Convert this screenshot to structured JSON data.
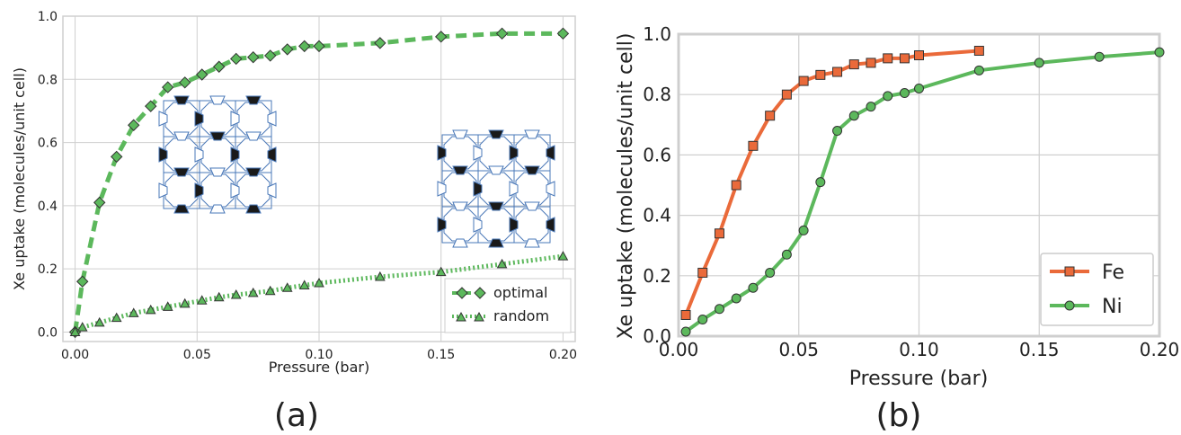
{
  "chart_data": [
    {
      "panel_label": "(a)",
      "type": "line",
      "xlabel": "Pressure (bar)",
      "ylabel": "Xe uptake (molecules/unit cell)",
      "xlim": [
        -0.005,
        0.205
      ],
      "ylim": [
        -0.03,
        1.0
      ],
      "xticks": [
        "0.00",
        "0.05",
        "0.10",
        "0.15",
        "0.20"
      ],
      "yticks": [
        "0.0",
        "0.2",
        "0.4",
        "0.6",
        "0.8",
        "1.0"
      ],
      "grid": true,
      "legend_position": "bottom-right",
      "series": [
        {
          "name": "optimal",
          "color": "#5cb85c",
          "marker": "diamond",
          "line": "dashed",
          "x": [
            0.0,
            0.003,
            0.01,
            0.017,
            0.024,
            0.031,
            0.038,
            0.045,
            0.052,
            0.059,
            0.066,
            0.073,
            0.08,
            0.087,
            0.094,
            0.1,
            0.125,
            0.15,
            0.175,
            0.2
          ],
          "y": [
            0.0,
            0.16,
            0.41,
            0.555,
            0.655,
            0.715,
            0.775,
            0.79,
            0.815,
            0.84,
            0.865,
            0.87,
            0.875,
            0.895,
            0.905,
            0.905,
            0.915,
            0.935,
            0.945,
            0.945
          ]
        },
        {
          "name": "random",
          "color": "#5cb85c",
          "marker": "triangle",
          "line": "dotted",
          "x": [
            0.0,
            0.003,
            0.01,
            0.017,
            0.024,
            0.031,
            0.038,
            0.045,
            0.052,
            0.059,
            0.066,
            0.073,
            0.08,
            0.087,
            0.094,
            0.1,
            0.125,
            0.15,
            0.175,
            0.2
          ],
          "y": [
            0.0,
            0.015,
            0.03,
            0.045,
            0.06,
            0.07,
            0.08,
            0.09,
            0.1,
            0.11,
            0.118,
            0.124,
            0.13,
            0.14,
            0.148,
            0.155,
            0.175,
            0.19,
            0.215,
            0.24
          ]
        }
      ]
    },
    {
      "panel_label": "(b)",
      "type": "line",
      "xlabel": "Pressure (bar)",
      "ylabel": "Xe uptake (molecules/unit cell)",
      "xlim": [
        0.0,
        0.2
      ],
      "ylim": [
        0.0,
        1.0
      ],
      "xticks": [
        "0.00",
        "0.05",
        "0.10",
        "0.15",
        "0.20"
      ],
      "yticks": [
        "0.0",
        "0.2",
        "0.4",
        "0.6",
        "0.8",
        "1.0"
      ],
      "grid": true,
      "legend_position": "bottom-right",
      "series": [
        {
          "name": "Fe",
          "color": "#ea6a3a",
          "marker": "square",
          "line": "solid",
          "x": [
            0.003,
            0.01,
            0.017,
            0.024,
            0.031,
            0.038,
            0.045,
            0.052,
            0.059,
            0.066,
            0.073,
            0.08,
            0.087,
            0.094,
            0.1,
            0.125
          ],
          "y": [
            0.07,
            0.21,
            0.34,
            0.5,
            0.63,
            0.73,
            0.8,
            0.845,
            0.865,
            0.875,
            0.9,
            0.905,
            0.92,
            0.92,
            0.93,
            0.945
          ]
        },
        {
          "name": "Ni",
          "color": "#5cb85c",
          "marker": "circle",
          "line": "solid",
          "x": [
            0.003,
            0.01,
            0.017,
            0.024,
            0.031,
            0.038,
            0.045,
            0.052,
            0.059,
            0.066,
            0.073,
            0.08,
            0.087,
            0.094,
            0.1,
            0.125,
            0.15,
            0.175,
            0.2
          ],
          "y": [
            0.015,
            0.055,
            0.09,
            0.125,
            0.16,
            0.21,
            0.27,
            0.35,
            0.51,
            0.68,
            0.73,
            0.76,
            0.795,
            0.805,
            0.82,
            0.88,
            0.905,
            0.925,
            0.94
          ]
        }
      ]
    }
  ],
  "structures": [
    {
      "name": "structure-optimal"
    },
    {
      "name": "structure-random"
    }
  ]
}
